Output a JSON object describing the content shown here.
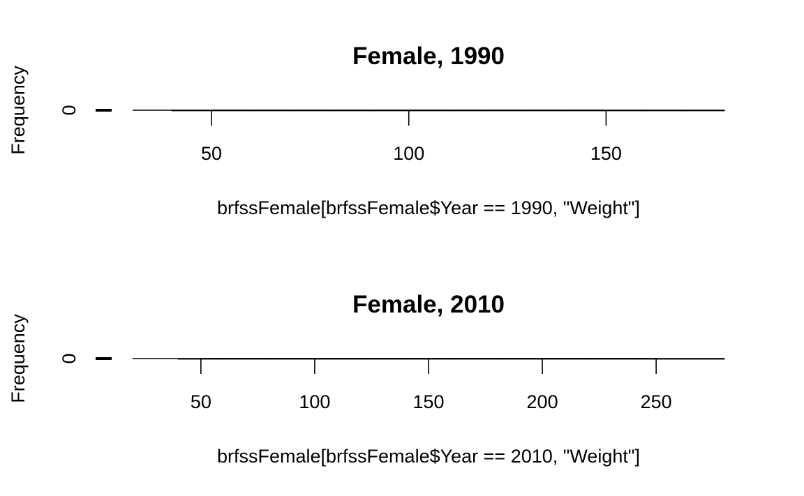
{
  "chart_data": [
    {
      "type": "bar",
      "title": "Female, 1990",
      "xlabel": "brfssFemale[brfssFemale$Year == 1990, \"Weight\"]",
      "ylabel": "Frequency",
      "xlim": [
        30,
        180
      ],
      "x_ticks": [
        50,
        100,
        150
      ],
      "y_ticks": [
        0
      ],
      "bin_width": 10,
      "bins": [
        {
          "start": 40,
          "end": 50,
          "count": 0
        },
        {
          "start": 50,
          "end": 60,
          "count": 0
        },
        {
          "start": 60,
          "end": 70,
          "count": 0
        },
        {
          "start": 70,
          "end": 80,
          "count": 0
        },
        {
          "start": 80,
          "end": 90,
          "count": 0
        },
        {
          "start": 90,
          "end": 100,
          "count": 0
        },
        {
          "start": 100,
          "end": 110,
          "count": 0
        },
        {
          "start": 110,
          "end": 120,
          "count": 0
        },
        {
          "start": 120,
          "end": 130,
          "count": 0
        },
        {
          "start": 130,
          "end": 140,
          "count": 0
        },
        {
          "start": 140,
          "end": 150,
          "count": 0
        },
        {
          "start": 150,
          "end": 160,
          "count": 0
        },
        {
          "start": 160,
          "end": 170,
          "count": 0
        },
        {
          "start": 170,
          "end": 180,
          "count": 0
        }
      ]
    },
    {
      "type": "bar",
      "title": "Female, 2010",
      "xlabel": "brfssFemale[brfssFemale$Year == 2010, \"Weight\"]",
      "ylabel": "Frequency",
      "xlim": [
        20,
        280
      ],
      "x_ticks": [
        50,
        100,
        150,
        200,
        250
      ],
      "y_ticks": [
        0
      ],
      "bin_width": 20,
      "bins": [
        {
          "start": 40,
          "end": 60,
          "count": 0
        },
        {
          "start": 60,
          "end": 80,
          "count": 0
        },
        {
          "start": 80,
          "end": 100,
          "count": 0
        },
        {
          "start": 100,
          "end": 120,
          "count": 0
        },
        {
          "start": 120,
          "end": 140,
          "count": 0
        },
        {
          "start": 140,
          "end": 160,
          "count": 0
        },
        {
          "start": 160,
          "end": 180,
          "count": 0
        },
        {
          "start": 180,
          "end": 200,
          "count": 0
        },
        {
          "start": 200,
          "end": 220,
          "count": 0
        },
        {
          "start": 220,
          "end": 240,
          "count": 0
        },
        {
          "start": 240,
          "end": 260,
          "count": 0
        },
        {
          "start": 260,
          "end": 280,
          "count": 0
        }
      ]
    }
  ]
}
